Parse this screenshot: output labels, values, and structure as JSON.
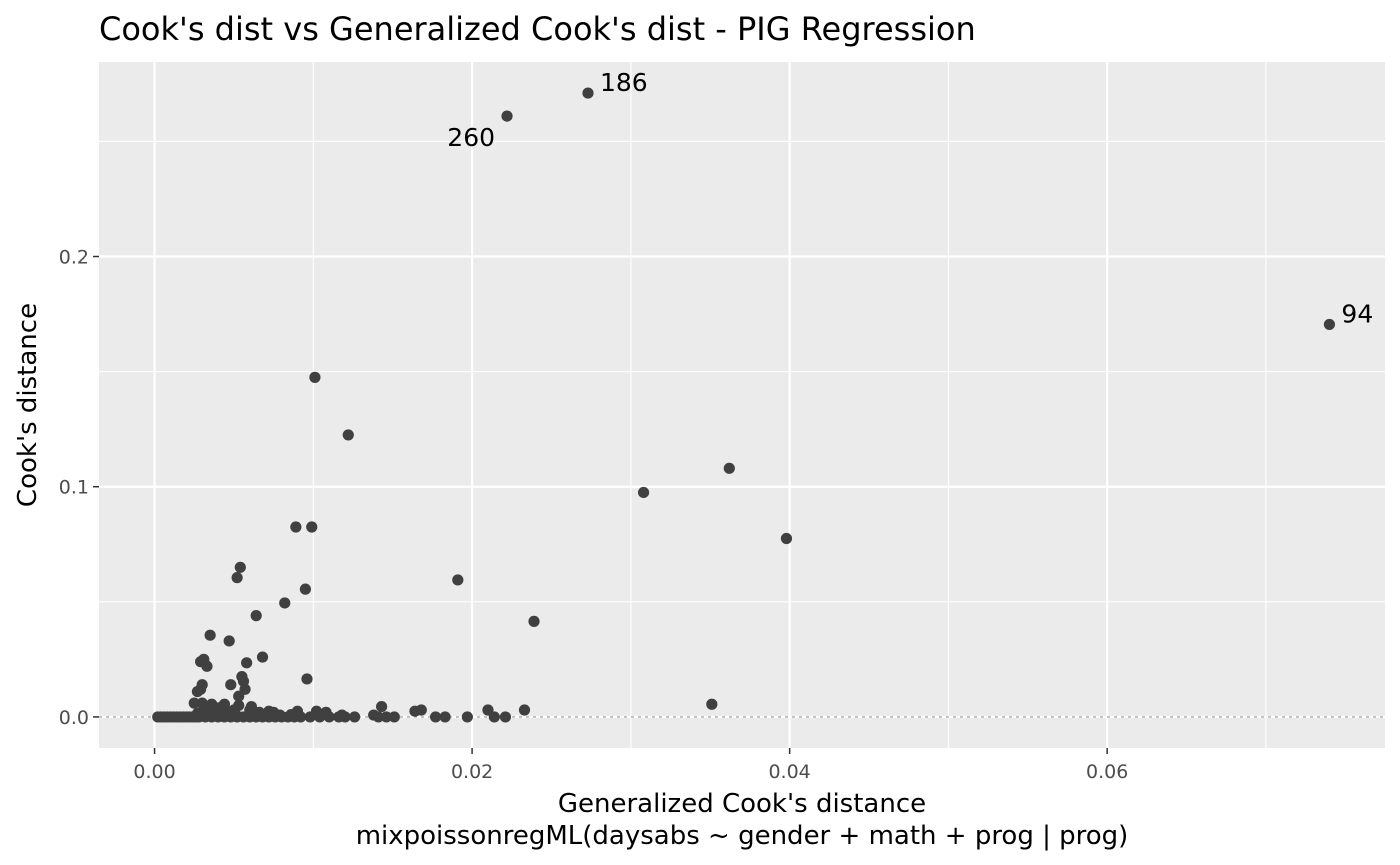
{
  "chart_data": {
    "type": "scatter",
    "title": "Cook's dist vs Generalized Cook's dist - PIG Regression",
    "xlabel": "Generalized Cook's distance",
    "xlabel_sub": "mixpoissonregML(daysabs ~ gender + math + prog | prog)",
    "ylabel": "Cook's distance",
    "xlim": [
      -0.0035,
      0.0775
    ],
    "ylim": [
      -0.0135,
      0.2845
    ],
    "x_ticks": [
      0.0,
      0.02,
      0.04,
      0.06
    ],
    "x_tick_labels": [
      "0.00",
      "0.02",
      "0.04",
      "0.06"
    ],
    "y_ticks": [
      0.0,
      0.1,
      0.2
    ],
    "y_tick_labels": [
      "0.0",
      "0.1",
      "0.2"
    ],
    "x_minor_ticks": [
      0.01,
      0.03,
      0.05,
      0.07
    ],
    "y_minor_ticks": [
      0.05,
      0.15,
      0.25
    ],
    "grid": true,
    "reference_line_y": 0,
    "colors": {
      "panel": "#ebebeb",
      "grid": "#ffffff",
      "point": "#404040",
      "reference_line": "#a8a8a8"
    },
    "labeled_points": [
      {
        "label": "186",
        "x": 0.0273,
        "y": 0.271,
        "label_side": "right"
      },
      {
        "label": "260",
        "x": 0.0222,
        "y": 0.261,
        "label_side": "left"
      },
      {
        "label": "94",
        "x": 0.074,
        "y": 0.1705,
        "label_side": "right"
      }
    ],
    "points": [
      [
        0.0101,
        0.1475
      ],
      [
        0.0122,
        0.1225
      ],
      [
        0.0362,
        0.108
      ],
      [
        0.0308,
        0.0975
      ],
      [
        0.0398,
        0.0775
      ],
      [
        0.0089,
        0.0825
      ],
      [
        0.0099,
        0.0825
      ],
      [
        0.0054,
        0.065
      ],
      [
        0.0052,
        0.0605
      ],
      [
        0.0191,
        0.0595
      ],
      [
        0.0095,
        0.0555
      ],
      [
        0.0082,
        0.0495
      ],
      [
        0.0064,
        0.044
      ],
      [
        0.0239,
        0.0415
      ],
      [
        0.0035,
        0.0355
      ],
      [
        0.0047,
        0.033
      ],
      [
        0.0068,
        0.026
      ],
      [
        0.0031,
        0.025
      ],
      [
        0.0029,
        0.024
      ],
      [
        0.0058,
        0.0235
      ],
      [
        0.0033,
        0.022
      ],
      [
        0.0055,
        0.0175
      ],
      [
        0.0096,
        0.0165
      ],
      [
        0.0056,
        0.0155
      ],
      [
        0.003,
        0.014
      ],
      [
        0.0048,
        0.014
      ],
      [
        0.0057,
        0.012
      ],
      [
        0.0027,
        0.011
      ],
      [
        0.0029,
        0.012
      ],
      [
        0.0053,
        0.009
      ],
      [
        0.0025,
        0.006
      ],
      [
        0.003,
        0.006
      ],
      [
        0.0036,
        0.0055
      ],
      [
        0.0041,
        0.004
      ],
      [
        0.0351,
        0.0055
      ],
      [
        0.0143,
        0.0045
      ],
      [
        0.0066,
        0.002
      ],
      [
        0.0075,
        0.002
      ],
      [
        0.009,
        0.0025
      ],
      [
        0.0102,
        0.0025
      ],
      [
        0.0108,
        0.002
      ],
      [
        0.0164,
        0.0025
      ],
      [
        0.0168,
        0.003
      ],
      [
        0.021,
        0.003
      ],
      [
        0.0233,
        0.003
      ],
      [
        0.005,
        0.003
      ],
      [
        0.0045,
        0.0025
      ],
      [
        0.0034,
        0.003
      ],
      [
        0.006,
        0.003
      ],
      [
        0.0072,
        0.0025
      ],
      [
        0.0002,
        0.0
      ],
      [
        0.0004,
        0.0
      ],
      [
        0.0006,
        0.0
      ],
      [
        0.0008,
        0.0
      ],
      [
        0.001,
        0.0
      ],
      [
        0.0012,
        0.0
      ],
      [
        0.0014,
        0.0
      ],
      [
        0.0016,
        0.0
      ],
      [
        0.0018,
        0.0
      ],
      [
        0.002,
        0.0
      ],
      [
        0.0022,
        0.0
      ],
      [
        0.0024,
        0.0
      ],
      [
        0.0026,
        0.0
      ],
      [
        0.0028,
        0.0
      ],
      [
        0.0032,
        0.0
      ],
      [
        0.0036,
        0.0
      ],
      [
        0.004,
        0.0
      ],
      [
        0.0044,
        0.0
      ],
      [
        0.0048,
        0.0
      ],
      [
        0.0052,
        0.0
      ],
      [
        0.0056,
        0.0
      ],
      [
        0.006,
        0.0
      ],
      [
        0.0064,
        0.0
      ],
      [
        0.0068,
        0.0
      ],
      [
        0.0072,
        0.0
      ],
      [
        0.0076,
        0.0
      ],
      [
        0.008,
        0.0
      ],
      [
        0.0084,
        0.0
      ],
      [
        0.0088,
        0.0
      ],
      [
        0.0092,
        0.0
      ],
      [
        0.0098,
        0.0
      ],
      [
        0.0104,
        0.0
      ],
      [
        0.011,
        0.0
      ],
      [
        0.0116,
        0.0
      ],
      [
        0.012,
        0.0
      ],
      [
        0.0126,
        0.0
      ],
      [
        0.0141,
        0.0
      ],
      [
        0.0146,
        0.0
      ],
      [
        0.0151,
        0.0
      ],
      [
        0.0177,
        0.0
      ],
      [
        0.0183,
        0.0
      ],
      [
        0.0197,
        0.0
      ],
      [
        0.0214,
        0.0
      ],
      [
        0.0221,
        0.0
      ],
      [
        0.0027,
        0.0015
      ],
      [
        0.0038,
        0.0015
      ],
      [
        0.0046,
        0.001
      ],
      [
        0.0051,
        0.0012
      ],
      [
        0.0062,
        0.001
      ],
      [
        0.0079,
        0.0008
      ],
      [
        0.0086,
        0.001
      ],
      [
        0.0106,
        0.001
      ],
      [
        0.0118,
        0.0008
      ],
      [
        0.0138,
        0.0008
      ],
      [
        0.0044,
        0.0055
      ],
      [
        0.0053,
        0.005
      ],
      [
        0.0061,
        0.0045
      ],
      [
        0.0039,
        0.0035
      ],
      [
        0.0031,
        0.0045
      ]
    ]
  }
}
